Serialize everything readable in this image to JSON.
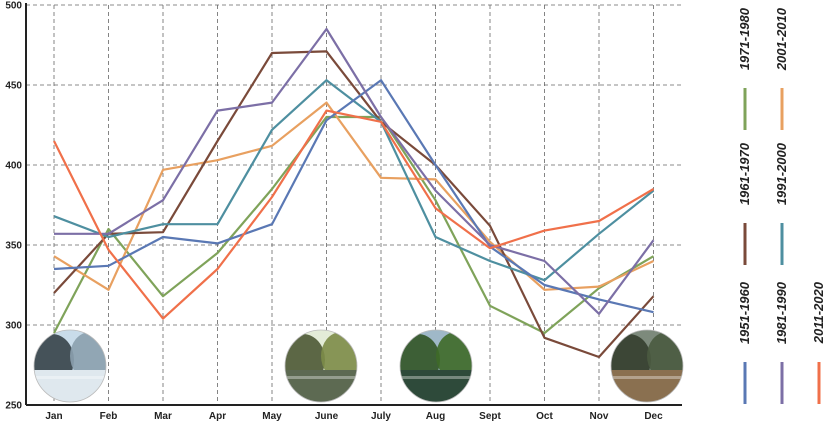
{
  "chart_data": {
    "type": "line",
    "title": "",
    "xlabel": "",
    "ylabel": "",
    "categories": [
      "Jan",
      "Feb",
      "Mar",
      "Apr",
      "May",
      "June",
      "July",
      "Aug",
      "Sept",
      "Oct",
      "Nov",
      "Dec"
    ],
    "ylim": [
      250,
      500
    ],
    "yticks": [
      "250",
      "300",
      "350",
      "400",
      "450",
      "500"
    ],
    "grid": true,
    "legend_position": "right",
    "series": [
      {
        "name": "1971-1980",
        "color": "#7fa35a",
        "values": [
          295,
          360,
          318,
          345,
          385,
          430,
          430,
          378,
          312,
          295,
          323,
          343
        ]
      },
      {
        "name": "2001-2010",
        "color": "#e8a060",
        "values": [
          343,
          322,
          397,
          403,
          412,
          439,
          392,
          391,
          352,
          322,
          324,
          340
        ]
      },
      {
        "name": "1961-1970",
        "color": "#7a4a3a",
        "values": [
          320,
          357,
          358,
          415,
          470,
          471,
          427,
          400,
          362,
          292,
          280,
          318
        ]
      },
      {
        "name": "1991-2000",
        "color": "#4e8fa0",
        "values": [
          368,
          355,
          363,
          363,
          422,
          453,
          427,
          355,
          340,
          328,
          357,
          384
        ]
      },
      {
        "name": "1951-1960",
        "color": "#5a78b4",
        "values": [
          335,
          337,
          355,
          351,
          363,
          428,
          453,
          400,
          349,
          325,
          316,
          308
        ]
      },
      {
        "name": "1981-1990",
        "color": "#7c6fa6",
        "values": [
          357,
          357,
          378,
          434,
          439,
          485,
          430,
          384,
          350,
          340,
          307,
          353
        ]
      },
      {
        "name": "2011-2020",
        "color": "#f0704a",
        "values": [
          415,
          347,
          304,
          335,
          380,
          434,
          427,
          373,
          348,
          359,
          365,
          385
        ]
      }
    ],
    "legend_groups": [
      [
        "1971-1980",
        "2001-2010"
      ],
      [
        "1961-1970",
        "1991-2000"
      ],
      [
        "1951-1960",
        "1981-1990",
        "2011-2020"
      ]
    ],
    "photo_months": [
      "Jan",
      "June",
      "Aug",
      "Dec"
    ]
  }
}
